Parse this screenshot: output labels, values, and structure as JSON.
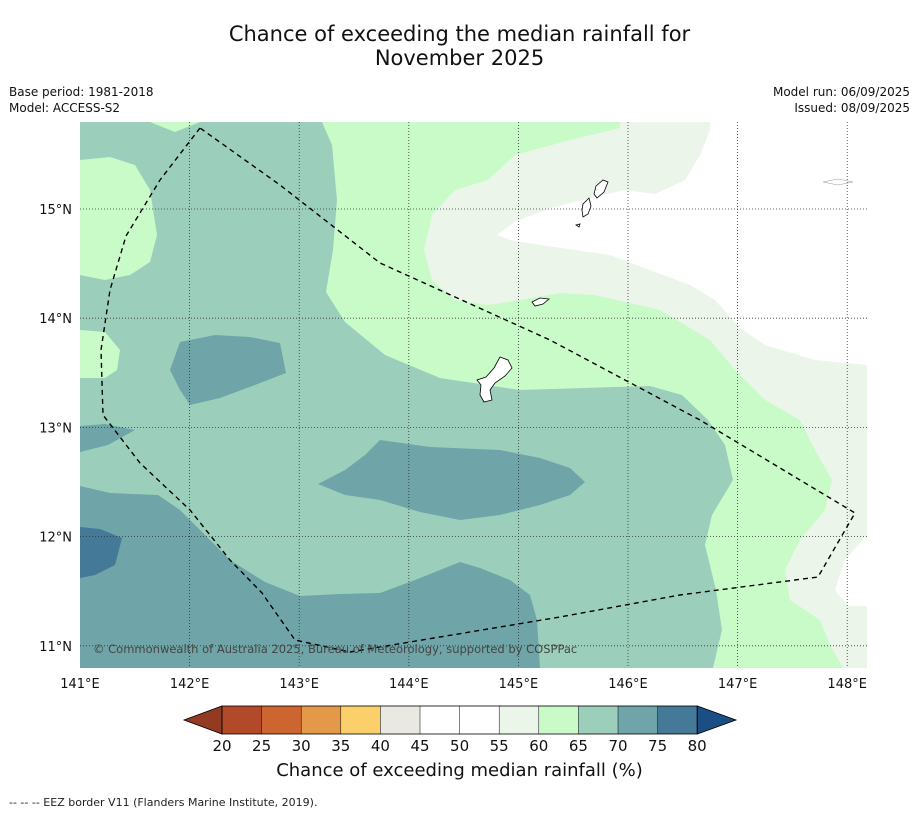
{
  "title": {
    "line1": "Chance of exceeding the median rainfall for",
    "line2": "November 2025"
  },
  "meta": {
    "base_period": "Base period: 1981-2018",
    "model": "Model: ACCESS-S2",
    "model_run": "Model run: 06/09/2025",
    "issued": "Issued: 08/09/2025"
  },
  "map": {
    "lon_ticks": [
      "141°E",
      "142°E",
      "143°E",
      "144°E",
      "145°E",
      "146°E",
      "147°E",
      "148°E"
    ],
    "lat_ticks": [
      "15°N",
      "14°N",
      "13°N",
      "12°N",
      "11°N"
    ],
    "copyright": "© Commonwealth of Australia 2025, Bureau of Meteorology, supported by COSPPac",
    "colors": {
      "c20_25": "#b24a2a",
      "c25_30": "#cd6530",
      "c30_35": "#e39a48",
      "c35_40": "#fbcf6a",
      "c40_45": "#e9e8e3",
      "c45_55": "#ffffff",
      "c55_60": "#ebf5ea",
      "c60_65": "#c9fbc9",
      "c65_70": "#9ccfbb",
      "c70_75": "#6fa5a8",
      "c75_80": "#447997",
      "under": "#923a22",
      "over": "#1a4f86"
    }
  },
  "colorbar": {
    "labels": [
      "20",
      "25",
      "30",
      "35",
      "40",
      "45",
      "50",
      "55",
      "60",
      "65",
      "70",
      "75",
      "80"
    ],
    "title": "Chance of exceeding median rainfall (%)"
  },
  "footnote": "--  --  -- EEZ border V11 (Flanders Marine Institute, 2019)."
}
